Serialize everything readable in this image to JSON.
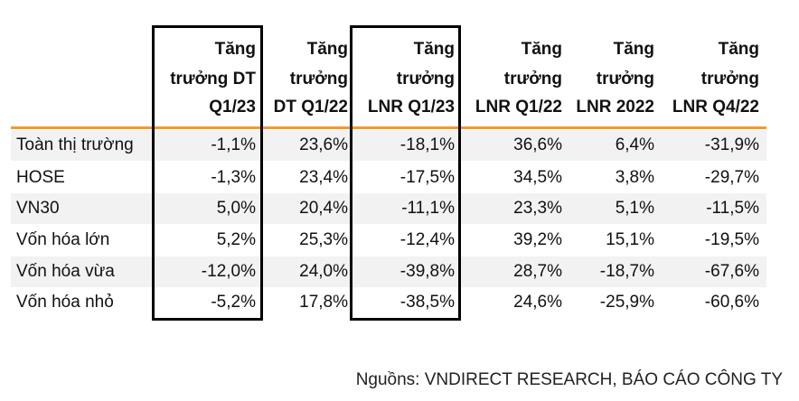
{
  "table": {
    "header": [
      [
        "Tăng",
        "trưởng DT",
        "Q1/23"
      ],
      [
        "Tăng",
        "trưởng",
        "DT Q1/22"
      ],
      [
        "Tăng",
        "trưởng",
        "LNR Q1/23"
      ],
      [
        "Tăng",
        "trưởng",
        "LNR Q1/22"
      ],
      [
        "Tăng",
        "trưởng",
        "LNR 2022"
      ],
      [
        "Tăng",
        "trưởng",
        "LNR Q4/22"
      ]
    ],
    "rows": [
      [
        "Toàn thị trường",
        "-1,1%",
        "23,6%",
        "-18,1%",
        "36,6%",
        "6,4%",
        "-31,9%"
      ],
      [
        "HOSE",
        "-1,3%",
        "23,4%",
        "-17,5%",
        "34,5%",
        "3,8%",
        "-29,7%"
      ],
      [
        "VN30",
        "5,0%",
        "20,4%",
        "-11,1%",
        "23,3%",
        "5,1%",
        "-11,5%"
      ],
      [
        "Vốn hóa lớn",
        "5,2%",
        "25,3%",
        "-12,4%",
        "39,2%",
        "15,1%",
        "-19,5%"
      ],
      [
        "Vốn hóa vừa",
        "-12,0%",
        "24,0%",
        "-39,8%",
        "28,7%",
        "-18,7%",
        "-67,6%"
      ],
      [
        "Vốn hóa nhỏ",
        "-5,2%",
        "17,8%",
        "-38,5%",
        "24,6%",
        "-25,9%",
        "-60,6%"
      ]
    ]
  },
  "source": "Nguồns: VNDIRECT RESEARCH, BÁO CÁO CÔNG TY"
}
